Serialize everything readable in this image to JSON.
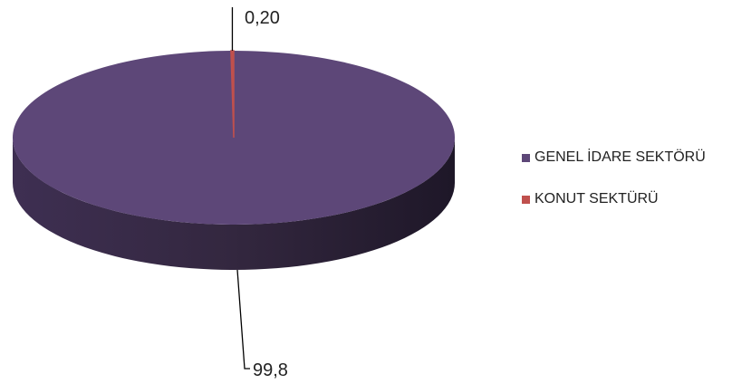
{
  "chart_data": {
    "type": "pie",
    "title": "",
    "style": "3d-pie",
    "legend_position": "right",
    "labels": [
      "GENEL İDARE SEKTÖRÜ",
      "KONUT SEKTÜRÜ"
    ],
    "values": [
      99.8,
      0.2
    ],
    "value_labels": [
      "99,8",
      "0,20"
    ],
    "colors": [
      "#5d4778",
      "#c0504d"
    ]
  }
}
